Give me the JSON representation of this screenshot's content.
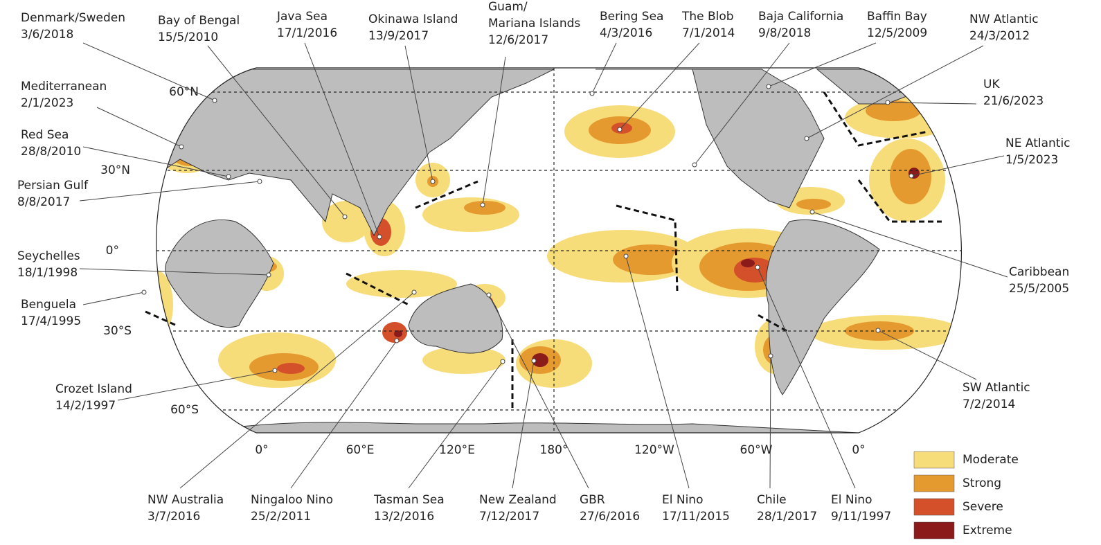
{
  "labels": [
    {
      "name": "Denmark/Sweden",
      "date": "3/6/2018"
    },
    {
      "name": "Bay of Bengal",
      "date": "15/5/2010"
    },
    {
      "name": "Java Sea",
      "date": "17/1/2016"
    },
    {
      "name": "Okinawa Island",
      "date": "13/9/2017"
    },
    {
      "name": [
        "Guam/",
        "Mariana Islands"
      ],
      "date": "12/6/2017"
    },
    {
      "name": "Bering Sea",
      "date": "4/3/2016"
    },
    {
      "name": "The Blob",
      "date": "7/1/2014"
    },
    {
      "name": "Baja California",
      "date": "9/8/2018"
    },
    {
      "name": "Baffin Bay",
      "date": "12/5/2009"
    },
    {
      "name": "NW Atlantic",
      "date": "24/3/2012"
    },
    {
      "name": "Mediterranean",
      "date": "2/1/2023"
    },
    {
      "name": "Red Sea",
      "date": "28/8/2010"
    },
    {
      "name": "Persian Gulf",
      "date": "8/8/2017"
    },
    {
      "name": "Seychelles",
      "date": "18/1/1998"
    },
    {
      "name": "Benguela",
      "date": "17/4/1995"
    },
    {
      "name": "Crozet Island",
      "date": "14/2/1997"
    },
    {
      "name": "UK",
      "date": "21/6/2023"
    },
    {
      "name": "NE Atlantic",
      "date": "1/5/2023"
    },
    {
      "name": "Caribbean",
      "date": "25/5/2005"
    },
    {
      "name": "SW Atlantic",
      "date": "7/2/2014"
    },
    {
      "name": "NW Australia",
      "date": "3/7/2016"
    },
    {
      "name": "Ningaloo Nino",
      "date": "25/2/2011"
    },
    {
      "name": "Tasman Sea",
      "date": "13/2/2016"
    },
    {
      "name": "New Zealand",
      "date": "7/12/2017"
    },
    {
      "name": "GBR",
      "date": "27/6/2016"
    },
    {
      "name": "El Nino",
      "date": "17/11/2015"
    },
    {
      "name": "Chile",
      "date": "28/1/2017"
    },
    {
      "name": "El Nino",
      "date": "9/11/1997"
    }
  ],
  "latitudes": [
    "60°N",
    "30°N",
    "0°",
    "30°S",
    "60°S"
  ],
  "longitudes": [
    "0°",
    "60°E",
    "120°E",
    "180°",
    "120°W",
    "60°W",
    "0°"
  ],
  "legend": [
    {
      "label": "Moderate",
      "color": "#f7dc7a"
    },
    {
      "label": "Strong",
      "color": "#e59a2f"
    },
    {
      "label": "Severe",
      "color": "#d4502a"
    },
    {
      "label": "Extreme",
      "color": "#8b1a1a"
    }
  ]
}
